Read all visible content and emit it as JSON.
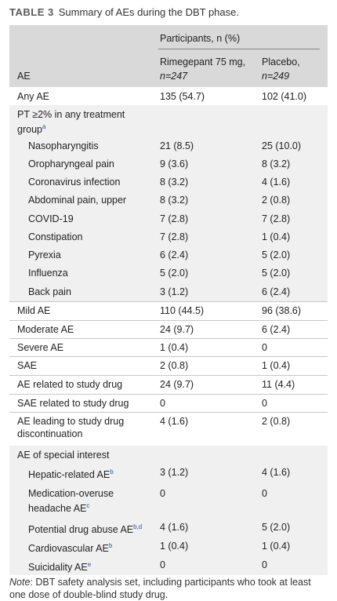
{
  "caption": {
    "label": "TABLE 3",
    "text": "Summary of AEs during the DBT phase."
  },
  "header": {
    "group": "Participants, n (%)",
    "col1_line1": "Rimegepant 75 mg,",
    "col1_line2": "n=247",
    "col2_line1": "Placebo,",
    "col2_line2": "n=249",
    "ae": "AE"
  },
  "rows": [
    {
      "label": "Any AE",
      "v1": "135 (54.7)",
      "v2": "102 (41.0)"
    },
    {
      "label": "PT ≥2% in any treatment",
      "label2": "group",
      "sup": "a",
      "v1": "",
      "v2": ""
    },
    {
      "label": "Nasopharyngitis",
      "v1": "21 (8.5)",
      "v2": "25 (10.0)"
    },
    {
      "label": "Oropharyngeal pain",
      "v1": "9 (3.6)",
      "v2": "8 (3.2)"
    },
    {
      "label": "Coronavirus infection",
      "v1": "8 (3.2)",
      "v2": "4 (1.6)"
    },
    {
      "label": "Abdominal pain, upper",
      "v1": "8 (3.2)",
      "v2": "2 (0.8)"
    },
    {
      "label": "COVID-19",
      "v1": "7 (2.8)",
      "v2": "7 (2.8)"
    },
    {
      "label": "Constipation",
      "v1": "7 (2.8)",
      "v2": "1 (0.4)"
    },
    {
      "label": "Pyrexia",
      "v1": "6 (2.4)",
      "v2": "5 (2.0)"
    },
    {
      "label": "Influenza",
      "v1": "5 (2.0)",
      "v2": "5 (2.0)"
    },
    {
      "label": "Back pain",
      "v1": "3 (1.2)",
      "v2": "6 (2.4)"
    },
    {
      "label": "Mild AE",
      "v1": "110 (44.5)",
      "v2": "96 (38.6)"
    },
    {
      "label": "Moderate AE",
      "v1": "24 (9.7)",
      "v2": "6 (2.4)"
    },
    {
      "label": "Severe AE",
      "v1": "1 (0.4)",
      "v2": "0"
    },
    {
      "label": "SAE",
      "v1": "2 (0.8)",
      "v2": "1 (0.4)"
    },
    {
      "label": "AE related to study drug",
      "v1": "24 (9.7)",
      "v2": "11 (4.4)"
    },
    {
      "label": "SAE related to study drug",
      "v1": "0",
      "v2": "0"
    },
    {
      "label": "AE leading to study drug",
      "label2": "discontinuation",
      "v1": "4 (1.6)",
      "v2": "2 (0.8)"
    },
    {
      "label": "AE of special interest",
      "v1": "",
      "v2": ""
    },
    {
      "label": "Hepatic-related AE",
      "sup": "b",
      "v1": "3 (1.2)",
      "v2": "4 (1.6)"
    },
    {
      "label": "Medication-overuse",
      "label2": "headache AE",
      "sup": "c",
      "v1": "0",
      "v2": "0"
    },
    {
      "label": "Potential drug abuse AE",
      "sup": "b,d",
      "v1": "4 (1.6)",
      "v2": "5 (2.0)"
    },
    {
      "label": "Cardiovascular AE",
      "sup": "b",
      "v1": "1 (0.4)",
      "v2": "1 (0.4)"
    },
    {
      "label": "Suicidality AE",
      "sup": "e",
      "v1": "0",
      "v2": "0"
    }
  ],
  "note": {
    "prefix": "Note",
    "text": ": DBT safety analysis set, including participants who took at least one dose of double-blind study drug."
  }
}
